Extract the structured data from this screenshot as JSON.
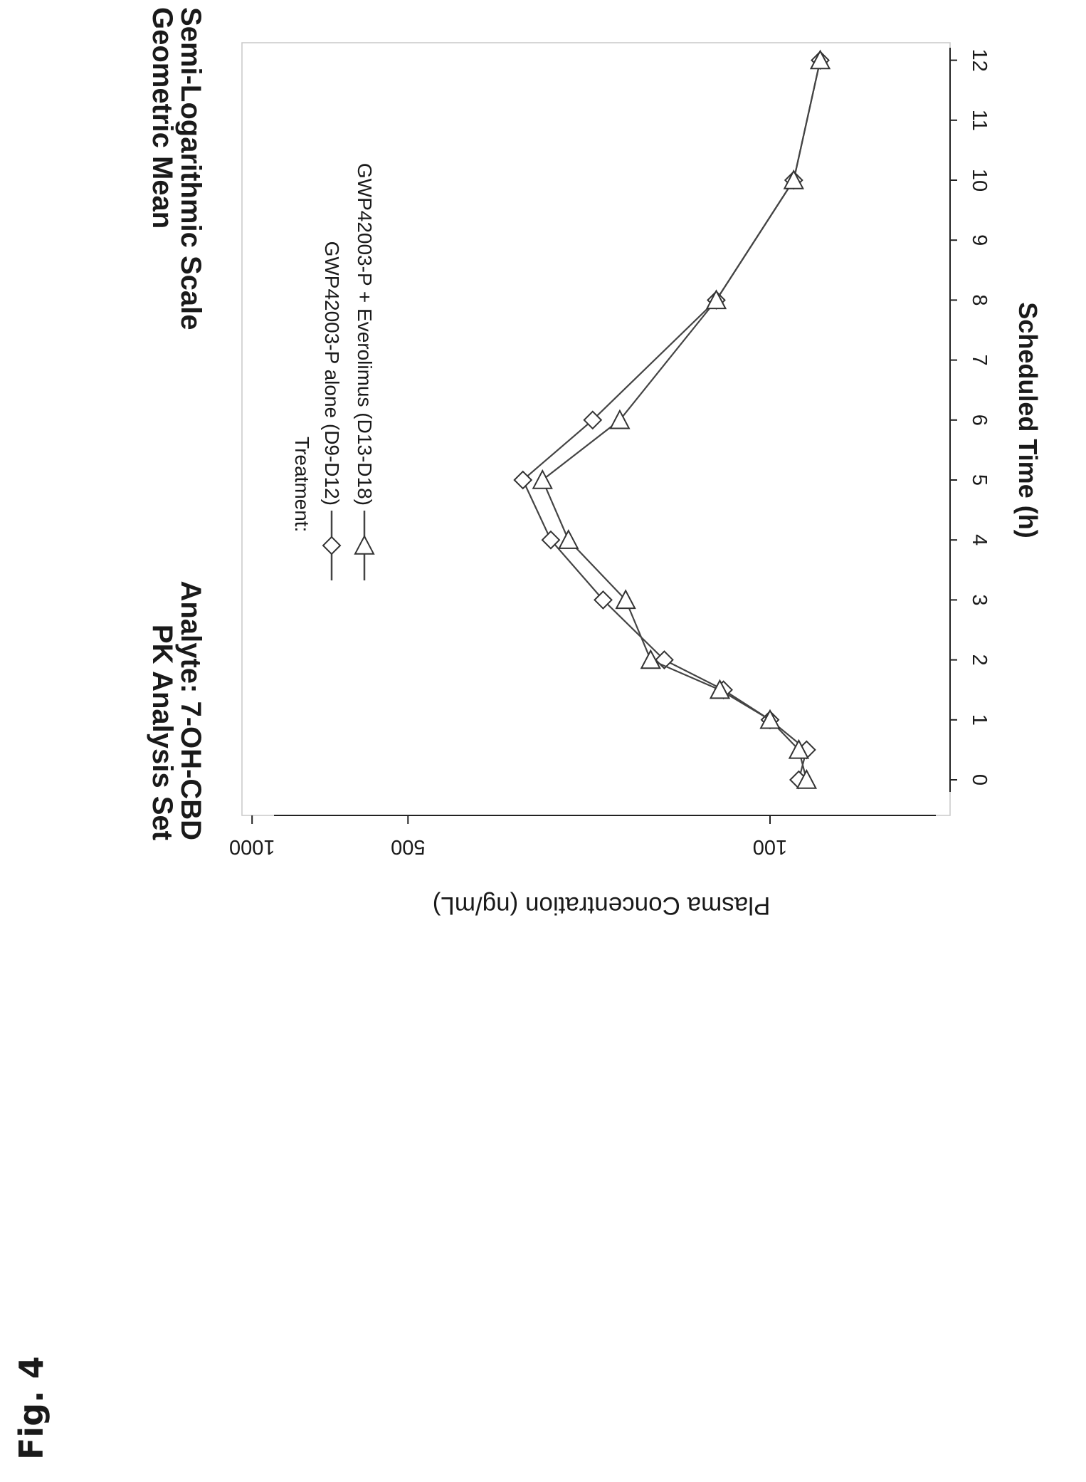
{
  "figure_label": "Fig. 4",
  "header": {
    "left_line1": "PK Analysis Set",
    "left_line2": "Analyte: 7-OH-CBD",
    "right_line1": "Geometric Mean",
    "right_line2": "Semi-Logarithmic Scale"
  },
  "chart_data": {
    "type": "line",
    "title": "",
    "xlabel": "Scheduled Time (h)",
    "ylabel": "Plasma Concentration (ng/mL)",
    "xlim": [
      0,
      12
    ],
    "ylim": [
      80,
      1000
    ],
    "yscale": "log",
    "x_ticks": [
      0,
      1,
      2,
      3,
      4,
      5,
      6,
      7,
      8,
      9,
      10,
      11,
      12
    ],
    "x_tick_labels": [
      "0",
      "1",
      "2",
      "3",
      "4",
      "5",
      "6",
      "7",
      "8",
      "9",
      "10",
      "11",
      "12"
    ],
    "y_ticks": [
      100,
      500,
      1000
    ],
    "y_tick_labels": [
      "100",
      "500",
      "1000"
    ],
    "grid": false,
    "rotation": "figure rotated 90 degrees clockwise; time axis runs top to bottom",
    "legend": {
      "title": "Treatment:",
      "placement": "top-left",
      "entries": [
        "GWP42003-P alone (D9-D12)",
        "GWP42003-P + Everolimus (D13-D18)"
      ]
    },
    "series": [
      {
        "name": "GWP42003-P alone (D9-D12)",
        "marker": "diamond",
        "x": [
          0,
          0.5,
          1,
          1.5,
          2,
          3,
          4,
          5,
          6,
          8,
          10,
          12
        ],
        "y": [
          88,
          85,
          100,
          123,
          160,
          210,
          265,
          300,
          220,
          127,
          90,
          80
        ]
      },
      {
        "name": "GWP42003-P + Everolimus (D13-D18)",
        "marker": "triangle",
        "x": [
          0,
          0.5,
          1,
          1.5,
          2,
          3,
          4,
          5,
          6,
          8,
          10,
          12
        ],
        "y": [
          85,
          88,
          100,
          125,
          170,
          190,
          245,
          275,
          195,
          127,
          90,
          80
        ]
      }
    ]
  }
}
